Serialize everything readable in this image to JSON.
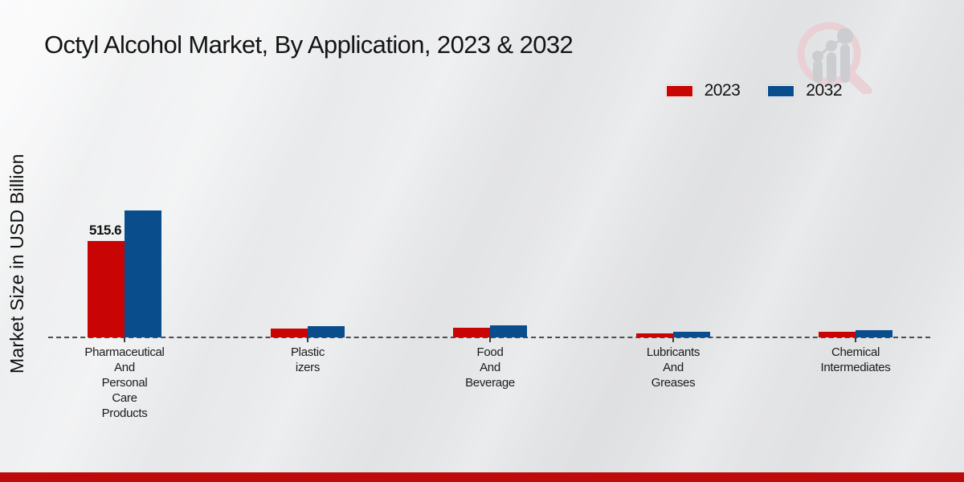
{
  "page": {
    "title": "Octyl Alcohol Market, By Application, 2023 & 2032",
    "ylabel": "Market Size in USD Billion"
  },
  "legend": {
    "items": [
      {
        "label": "2023",
        "color": "#c90404"
      },
      {
        "label": "2032",
        "color": "#0a4d8c"
      }
    ],
    "position": "top-right"
  },
  "chart_data": {
    "type": "bar",
    "title": "Octyl Alcohol Market, By Application, 2023 & 2032",
    "xlabel": "",
    "ylabel": "Market Size in USD Billion",
    "grid": false,
    "baseline_style": "dashed",
    "legend_position": "top-right",
    "categories": [
      "Pharmaceutical And Personal Care Products",
      "Plasticizers",
      "Food And Beverage",
      "Lubricants And Greases",
      "Chemical Intermediates"
    ],
    "category_label_lines": [
      [
        "Pharmaceutical",
        "And",
        "Personal",
        "Care",
        "Products"
      ],
      [
        "Plastic",
        "izers"
      ],
      [
        "Food",
        "And",
        "Beverage"
      ],
      [
        "Lubricants",
        "And",
        "Greases"
      ],
      [
        "Chemical",
        "Intermediates"
      ]
    ],
    "series": [
      {
        "name": "2023",
        "color": "#c90404",
        "values": [
          515.6,
          47,
          51,
          22,
          29
        ]
      },
      {
        "name": "2032",
        "color": "#0a4d8c",
        "values": [
          680,
          62,
          66,
          29,
          40
        ]
      }
    ],
    "value_labels": [
      {
        "series_index": 0,
        "category_index": 0,
        "text": "515.6"
      }
    ],
    "ylim": [
      0,
      730
    ],
    "units": "USD Billion"
  },
  "colors": {
    "bar_2023": "#c90404",
    "bar_2032": "#0a4d8c",
    "footer_bar": "#bf0a0a",
    "baseline": "#4d4d4d",
    "background_light": "#f8f9fa",
    "background_dark": "#e2e3e5"
  },
  "watermark": {
    "icon": "magnifier-bar-chart-logo"
  },
  "footer": {
    "type": "solid-red-band"
  }
}
